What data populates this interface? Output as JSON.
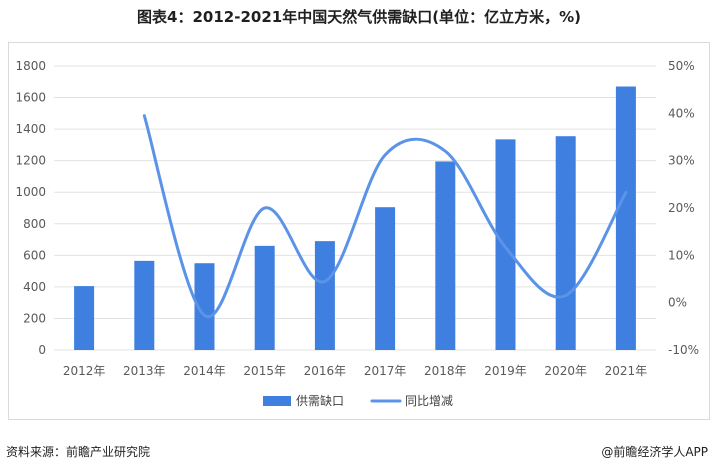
{
  "title": "图表4：2012-2021年中国天然气供需缺口(单位：亿立方米，%)",
  "source": "资料来源：前瞻产业研究院",
  "brand": "@前瞻经济学人APP",
  "chart_data": {
    "type": "bar",
    "title": "图表4：2012-2021年中国天然气供需缺口(单位：亿立方米，%)",
    "categories": [
      "2012年",
      "2013年",
      "2014年",
      "2015年",
      "2016年",
      "2017年",
      "2018年",
      "2019年",
      "2020年",
      "2021年"
    ],
    "series": [
      {
        "name": "供需缺口",
        "type": "bar",
        "axis": "left",
        "color": "#3f7fe0",
        "values": [
          405,
          565,
          550,
          660,
          690,
          905,
          1195,
          1335,
          1355,
          1670
        ]
      },
      {
        "name": "同比增减",
        "type": "line",
        "axis": "right",
        "color": "#5b93e8",
        "values": [
          null,
          39.5,
          -2.7,
          20.0,
          4.5,
          31.2,
          32.0,
          11.7,
          1.5,
          23.3
        ]
      }
    ],
    "y_left": {
      "min": 0,
      "max": 1800,
      "step": 200,
      "ticks": [
        "0",
        "200",
        "400",
        "600",
        "800",
        "1000",
        "1200",
        "1400",
        "1600",
        "1800"
      ]
    },
    "y_right": {
      "min": -10,
      "max": 50,
      "step": 10,
      "ticks": [
        "-10%",
        "0%",
        "10%",
        "20%",
        "30%",
        "40%",
        "50%"
      ]
    },
    "grid": true,
    "legend_position": "bottom"
  }
}
